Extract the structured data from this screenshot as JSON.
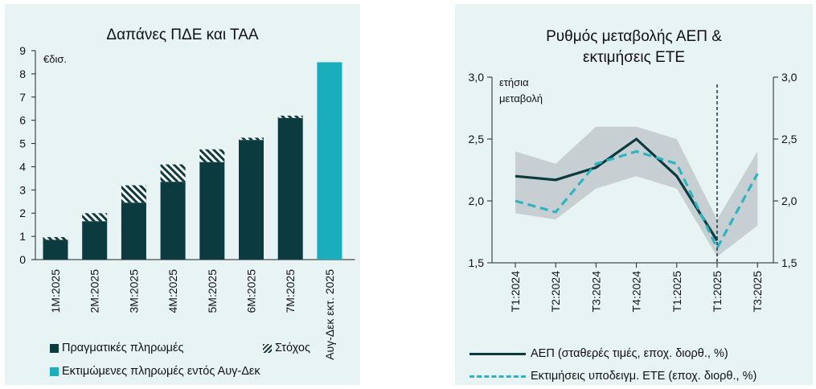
{
  "left_chart": {
    "title": "Δαπάνες ΠΔΕ και ΤΑΑ",
    "unit_label": "€δισ.",
    "legend": {
      "actual": "Πραγματικές πληρωμές",
      "target": "Στόχος",
      "estimated": "Εκτιμώμενες πληρωμές εντός Αυγ-Δεκ"
    }
  },
  "right_chart": {
    "title_line1": "Ρυθμός μεταβολής ΑΕΠ &",
    "title_line2": "εκτιμήσεις ΕΤΕ",
    "ylabel_line1": "ετήσια",
    "ylabel_line2": "μεταβολή",
    "legend": {
      "gdp": "ΑΕΠ (σταθερές τιμές, εποχ. διορθ., %)",
      "model": "Εκτιμήσεις υποδειγμ. ΕΤΕ (εποχ. διορθ., %)"
    }
  },
  "colors": {
    "panel_bg": "#e8f3f3",
    "dark": "#0b3a3f",
    "teal": "#1aadbd",
    "dashed": "#2ab5c4",
    "band": "#c8cfd2"
  },
  "chart_data": [
    {
      "type": "bar",
      "title": "Δαπάνες ΠΔΕ και ΤΑΑ",
      "ylabel": "€δισ.",
      "ylim": [
        0,
        9
      ],
      "yticks": [
        "0",
        "1",
        "2",
        "3",
        "4",
        "5",
        "6",
        "7",
        "8",
        "9"
      ],
      "categories": [
        "1Μ:2025",
        "2Μ:2025",
        "3Μ:2025",
        "4Μ:2025",
        "5Μ:2025",
        "6Μ:2025",
        "7Μ:2025",
        "Αυγ-Δεκ εκτ. 2025"
      ],
      "series": [
        {
          "name": "Πραγματικές πληρωμές",
          "values": [
            0.85,
            1.65,
            2.45,
            3.35,
            4.2,
            5.15,
            6.1,
            null
          ]
        },
        {
          "name": "Στόχος",
          "values": [
            0.97,
            2.0,
            3.2,
            4.1,
            4.75,
            5.25,
            6.2,
            null
          ]
        },
        {
          "name": "Εκτιμώμενες πληρωμές εντός Αυγ-Δεκ",
          "values": [
            null,
            null,
            null,
            null,
            null,
            null,
            null,
            8.5
          ]
        }
      ],
      "grid": false,
      "legend_position": "bottom"
    },
    {
      "type": "line",
      "title": "Ρυθμός μεταβολής ΑΕΠ & εκτιμήσεις ΕΤΕ",
      "ylabel": "ετήσια μεταβολή",
      "ylim": [
        1.5,
        3.0
      ],
      "yticks": [
        "1,5",
        "2,0",
        "2,5",
        "3,0"
      ],
      "categories": [
        "Τ1:2024",
        "Τ2:2024",
        "Τ3:2024",
        "Τ4:2024",
        "Τ1:2025",
        "Τ1:2025",
        "Τ3:2025"
      ],
      "series": [
        {
          "name": "ΑΕΠ (σταθερές τιμές, εποχ. διορθ., %)",
          "values": [
            2.2,
            2.17,
            2.27,
            2.5,
            2.2,
            1.68,
            null
          ]
        },
        {
          "name": "Εκτιμήσεις υποδειγμ. ΕΤΕ (εποχ. διορθ., %)",
          "values": [
            2.0,
            1.91,
            2.3,
            2.4,
            2.3,
            1.62,
            2.22
          ]
        }
      ],
      "band": {
        "upper": [
          2.4,
          2.3,
          2.6,
          2.6,
          2.5,
          1.85,
          2.4
        ],
        "lower": [
          1.9,
          1.85,
          2.1,
          2.2,
          2.1,
          1.55,
          1.8
        ]
      },
      "forecast_marker_category": 5,
      "grid": false,
      "legend_position": "bottom"
    }
  ]
}
